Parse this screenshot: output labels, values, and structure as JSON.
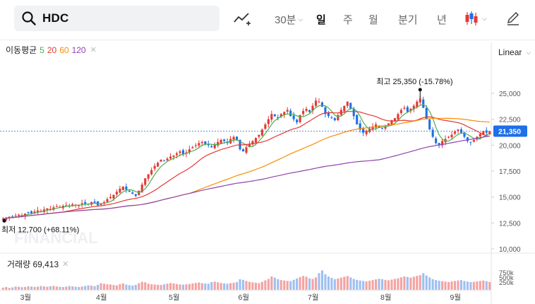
{
  "search": {
    "query": "HDC"
  },
  "toolbar": {
    "interval_dropdown": "30분",
    "intervals": [
      "일",
      "주",
      "월",
      "분기",
      "년"
    ],
    "selected_interval": "일"
  },
  "indicator": {
    "label": "이동평균",
    "p5": "5",
    "p20": "20",
    "p60": "60",
    "p120": "120"
  },
  "scale": {
    "label": "Linear"
  },
  "annotations": {
    "high": "최고 25,350 (-15.78%)",
    "low": "최저 12,700 (+68.11%)"
  },
  "watermark": "FINANCIAL",
  "volume": {
    "label": "거래량 69,413",
    "ticks": [
      "750k",
      "500k",
      "250k"
    ]
  },
  "price_badge": "21,350",
  "colors": {
    "up": "#e53935",
    "down": "#1e6fe8",
    "ma5": "#4caf50",
    "ma20": "#e53935",
    "ma60": "#fb8c00",
    "ma120": "#8e44ad"
  },
  "chart_data": {
    "type": "candlestick",
    "y_axis_ticks": [
      "25,000",
      "22,500",
      "20,000",
      "17,500",
      "15,000",
      "12,500",
      "10,000"
    ],
    "ylim": [
      10000,
      26500
    ],
    "x_axis_ticks": [
      "3월",
      "4월",
      "5월",
      "6월",
      "7월",
      "8월",
      "9월"
    ],
    "current_price": 21350,
    "high": 25350,
    "low": 12700,
    "close_series": [
      12900,
      13000,
      13100,
      13050,
      13200,
      13300,
      13250,
      13400,
      13500,
      13450,
      13600,
      13700,
      13650,
      13800,
      13900,
      13850,
      14000,
      14100,
      14050,
      14150,
      14200,
      14100,
      14300,
      14250,
      14200,
      14400,
      14350,
      14300,
      14500,
      14450,
      14200,
      14300,
      14500,
      14800,
      15000,
      15200,
      15500,
      15800,
      16000,
      15700,
      15500,
      15300,
      15100,
      15600,
      16200,
      16800,
      17200,
      17600,
      18000,
      18300,
      18600,
      18500,
      18700,
      18900,
      19000,
      19200,
      19400,
      19100,
      19300,
      19600,
      19800,
      20000,
      20200,
      20300,
      20100,
      20000,
      19800,
      20100,
      20300,
      20500,
      20400,
      20200,
      20600,
      20800,
      20500,
      19600,
      19400,
      19800,
      20100,
      20400,
      20700,
      21000,
      21500,
      22000,
      22500,
      23000,
      22800,
      22600,
      23000,
      23200,
      23400,
      22800,
      22500,
      22200,
      22900,
      23300,
      23500,
      23200,
      23800,
      24300,
      24200,
      23700,
      23000,
      22800,
      22600,
      22400,
      22900,
      23400,
      23800,
      24200,
      23500,
      22800,
      22000,
      21500,
      21200,
      21400,
      21600,
      21800,
      22000,
      21700,
      21600,
      21800,
      22100,
      22400,
      22600,
      23000,
      23400,
      23600,
      23200,
      23500,
      23800,
      24200,
      24500,
      23600,
      22500,
      21500,
      20800,
      20200,
      20000,
      20400,
      20600,
      20800,
      21000,
      21300,
      21500,
      21200,
      20800,
      20400,
      20300,
      20500,
      20800,
      21100,
      21350,
      21200,
      21350
    ],
    "volume_series": [
      20,
      25,
      18,
      22,
      30,
      28,
      24,
      26,
      32,
      30,
      27,
      29,
      35,
      31,
      28,
      33,
      36,
      30,
      27,
      25,
      29,
      34,
      31,
      28,
      26,
      30,
      35,
      40,
      38,
      33,
      45,
      60,
      55,
      50,
      48,
      44,
      40,
      52,
      58,
      47,
      42,
      39,
      45,
      60,
      72,
      68,
      55,
      50,
      48,
      46,
      44,
      50,
      56,
      61,
      58,
      52,
      49,
      47,
      50,
      53,
      58,
      62,
      66,
      60,
      57,
      55,
      70,
      74,
      68,
      62,
      58,
      55,
      60,
      64,
      70,
      95,
      90,
      80,
      72,
      68,
      64,
      60,
      72,
      85,
      98,
      120,
      110,
      96,
      88,
      84,
      80,
      78,
      90,
      102,
      115,
      125,
      118,
      104,
      98,
      112,
      150,
      175,
      140,
      120,
      108,
      96,
      102,
      110,
      118,
      124,
      112,
      98,
      90,
      84,
      80,
      76,
      82,
      88,
      94,
      100,
      96,
      90,
      86,
      92,
      98,
      104,
      112,
      120,
      116,
      110,
      118,
      126,
      132,
      150,
      130,
      112,
      96,
      88,
      82,
      78,
      74,
      70,
      76,
      80,
      84,
      88,
      80,
      74,
      70,
      72,
      76,
      80,
      84,
      78,
      70
    ]
  }
}
